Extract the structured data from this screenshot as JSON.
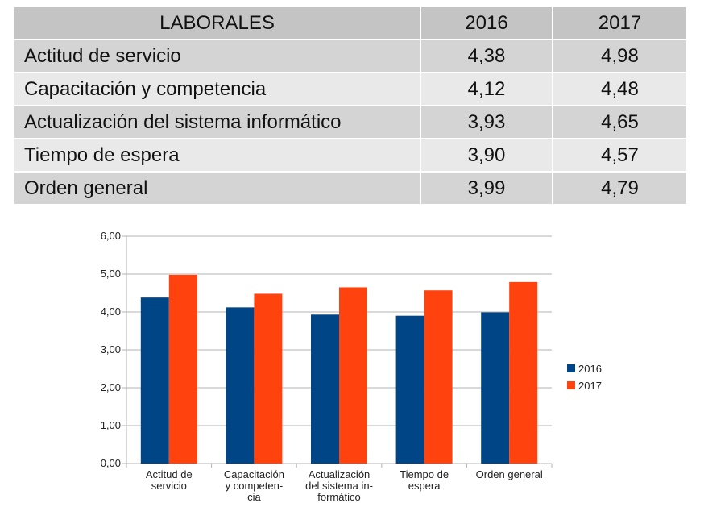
{
  "table": {
    "headers": [
      "LABORALES",
      "2016",
      "2017"
    ],
    "rows": [
      {
        "label": "Actitud de servicio",
        "v2016": "4,38",
        "v2017": "4,98"
      },
      {
        "label": "Capacitación y competencia",
        "v2016": "4,12",
        "v2017": "4,48"
      },
      {
        "label": "Actualización del sistema informático",
        "v2016": "3,93",
        "v2017": "4,65"
      },
      {
        "label": "Tiempo de espera",
        "v2016": "3,90",
        "v2017": "4,57"
      },
      {
        "label": "Orden general",
        "v2016": "3,99",
        "v2017": "4,79"
      }
    ]
  },
  "chart_data": {
    "type": "bar",
    "categories": [
      [
        "Actitud de",
        "servicio"
      ],
      [
        "Capacitación",
        "y competen-",
        "cia"
      ],
      [
        "Actualización",
        "del sistema in-",
        "formático"
      ],
      [
        "Tiempo de",
        "espera"
      ],
      [
        "Orden general"
      ]
    ],
    "series": [
      {
        "name": "2016",
        "color": "#004586",
        "values": [
          4.38,
          4.12,
          3.93,
          3.9,
          3.99
        ]
      },
      {
        "name": "2017",
        "color": "#ff420e",
        "values": [
          4.98,
          4.48,
          4.65,
          4.57,
          4.79
        ]
      }
    ],
    "ylim": [
      0,
      6
    ],
    "yticks": [
      "0,00",
      "1,00",
      "2,00",
      "3,00",
      "4,00",
      "5,00",
      "6,00"
    ],
    "grid": true,
    "legend": "right"
  }
}
